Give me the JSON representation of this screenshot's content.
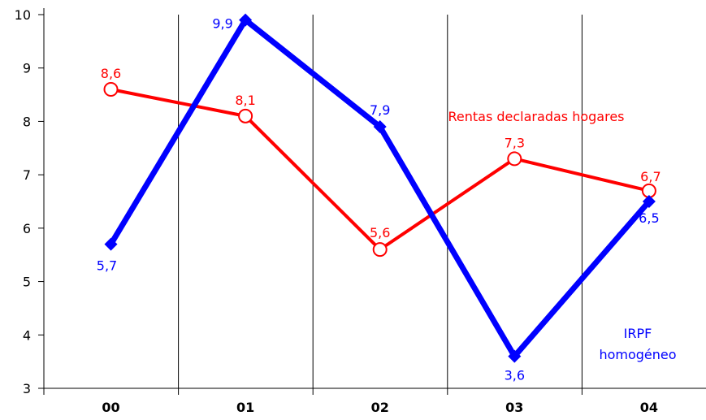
{
  "chart_data": {
    "type": "line",
    "title": "",
    "xlabel": "",
    "ylabel": "",
    "categories": [
      "00",
      "01",
      "02",
      "03",
      "04"
    ],
    "ylim": [
      3,
      10
    ],
    "yticks": [
      3,
      4,
      5,
      6,
      7,
      8,
      9,
      10
    ],
    "grid": "vertical separators between categories",
    "series": [
      {
        "name": "Rentas declaradas hogares",
        "values": [
          8.6,
          8.1,
          5.6,
          7.3,
          6.7
        ],
        "labels": [
          "8,6",
          "8,1",
          "5,6",
          "7,3",
          "6,7"
        ],
        "color": "#ff0000",
        "marker": "open-circle"
      },
      {
        "name": "IRPF homogéneo",
        "name_lines": [
          "IRPF",
          "homogéneo"
        ],
        "values": [
          5.7,
          9.9,
          7.9,
          3.6,
          6.5
        ],
        "labels": [
          "5,7",
          "9,9",
          "7,9",
          "3,6",
          "6,5"
        ],
        "color": "#0000ff",
        "marker": "filled-diamond"
      }
    ]
  }
}
